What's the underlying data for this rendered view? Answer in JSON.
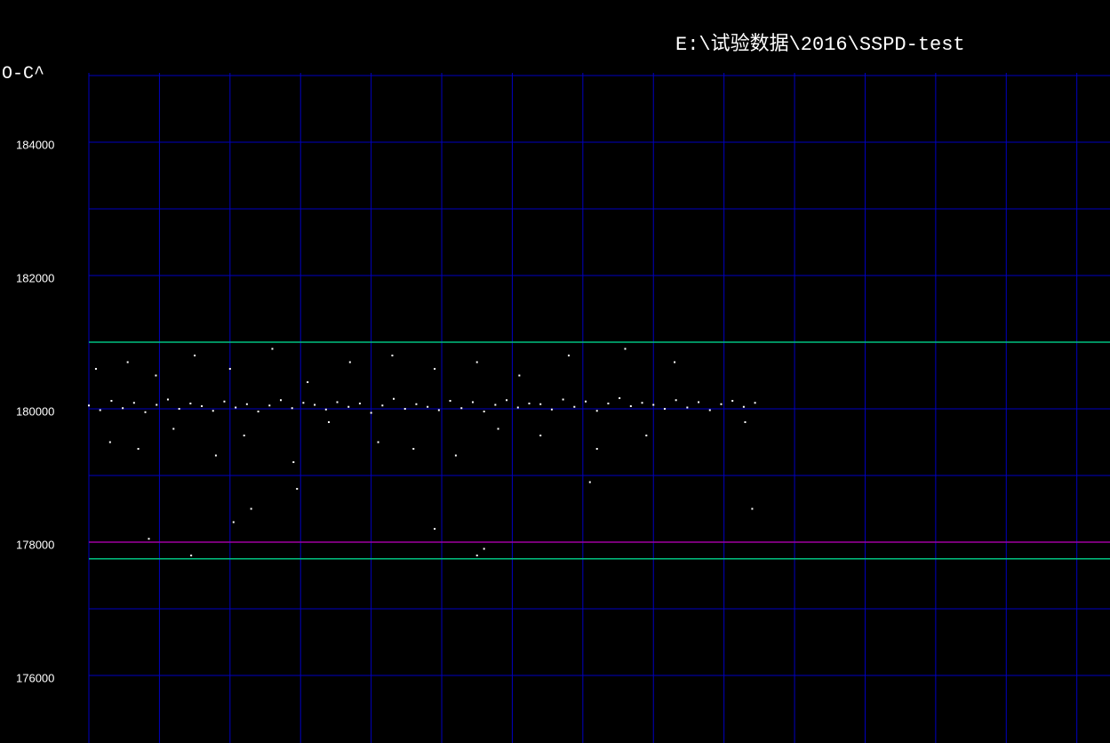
{
  "chart_data": {
    "type": "scatter",
    "title": "E:\\试验数据\\2016\\SSPD-test",
    "y_label": "O-C^",
    "xlim": [
      0,
      14.47
    ],
    "xgrid": [
      0,
      1,
      2,
      3,
      4,
      5,
      6,
      7,
      8,
      9,
      10,
      11,
      12,
      13,
      14
    ],
    "ylim": [
      175000,
      185000
    ],
    "yticks": [
      176000,
      178000,
      180000,
      182000,
      184000
    ],
    "ygrid": [
      176000,
      177000,
      178000,
      179000,
      180000,
      181000,
      182000,
      183000,
      184000,
      185000
    ],
    "grid_color": "#0000c0",
    "hlines": [
      {
        "value": 181000,
        "color": "#00c080"
      },
      {
        "value": 178000,
        "color": "#a000a0"
      },
      {
        "value": 177750,
        "color": "#00c080"
      }
    ],
    "series": [
      {
        "color": "#ffffff",
        "x": [
          0,
          0.16,
          0.32,
          0.48,
          0.64,
          0.8,
          0.96,
          1.12,
          1.28,
          1.44,
          1.6,
          1.76,
          1.92,
          2.08,
          2.24,
          2.4,
          2.56,
          2.72,
          2.88,
          3.04,
          3.2,
          3.36,
          3.52,
          3.68,
          3.84,
          4.0,
          4.16,
          4.32,
          4.48,
          4.64,
          4.8,
          4.96,
          5.12,
          5.28,
          5.44,
          5.6,
          5.76,
          5.92,
          6.08,
          6.24,
          6.4,
          6.56,
          6.72,
          6.88,
          7.04,
          7.2,
          7.36,
          7.52,
          7.68,
          7.84,
          8.0,
          8.16,
          8.32,
          8.48,
          8.64,
          8.8,
          8.96,
          9.12,
          9.28,
          9.44,
          0.1,
          0.3,
          0.55,
          0.7,
          0.95,
          1.2,
          1.5,
          1.8,
          2.0,
          2.2,
          2.6,
          2.9,
          3.1,
          3.4,
          3.7,
          4.1,
          4.3,
          4.6,
          4.9,
          5.2,
          5.5,
          5.8,
          6.1,
          6.4,
          6.8,
          7.2,
          7.6,
          7.9,
          8.3,
          9.3,
          0.85,
          1.45,
          2.05,
          2.3,
          2.95,
          4.9,
          5.6,
          5.5,
          7.1,
          9.4
        ],
        "values": [
          180050,
          179980,
          180120,
          180010,
          180090,
          179950,
          180060,
          180140,
          180000,
          180080,
          180040,
          179970,
          180110,
          180020,
          180070,
          179960,
          180050,
          180130,
          180010,
          180090,
          180060,
          179990,
          180100,
          180030,
          180080,
          179940,
          180050,
          180150,
          180000,
          180070,
          180030,
          179980,
          180120,
          180010,
          180100,
          179960,
          180060,
          180130,
          180020,
          180080,
          180070,
          179990,
          180140,
          180030,
          180110,
          179970,
          180080,
          180160,
          180040,
          180090,
          180060,
          180000,
          180130,
          180020,
          180100,
          179980,
          180070,
          180120,
          180030,
          180090,
          180600,
          179500,
          180700,
          179400,
          180500,
          179700,
          180800,
          179300,
          180600,
          179600,
          180900,
          179200,
          180400,
          179800,
          180700,
          179500,
          180800,
          179400,
          180600,
          179300,
          180700,
          179700,
          180500,
          179600,
          180800,
          179400,
          180900,
          179600,
          180700,
          179800,
          178050,
          177800,
          178300,
          178500,
          178800,
          178200,
          177900,
          177800,
          178900,
          178500
        ]
      }
    ]
  }
}
